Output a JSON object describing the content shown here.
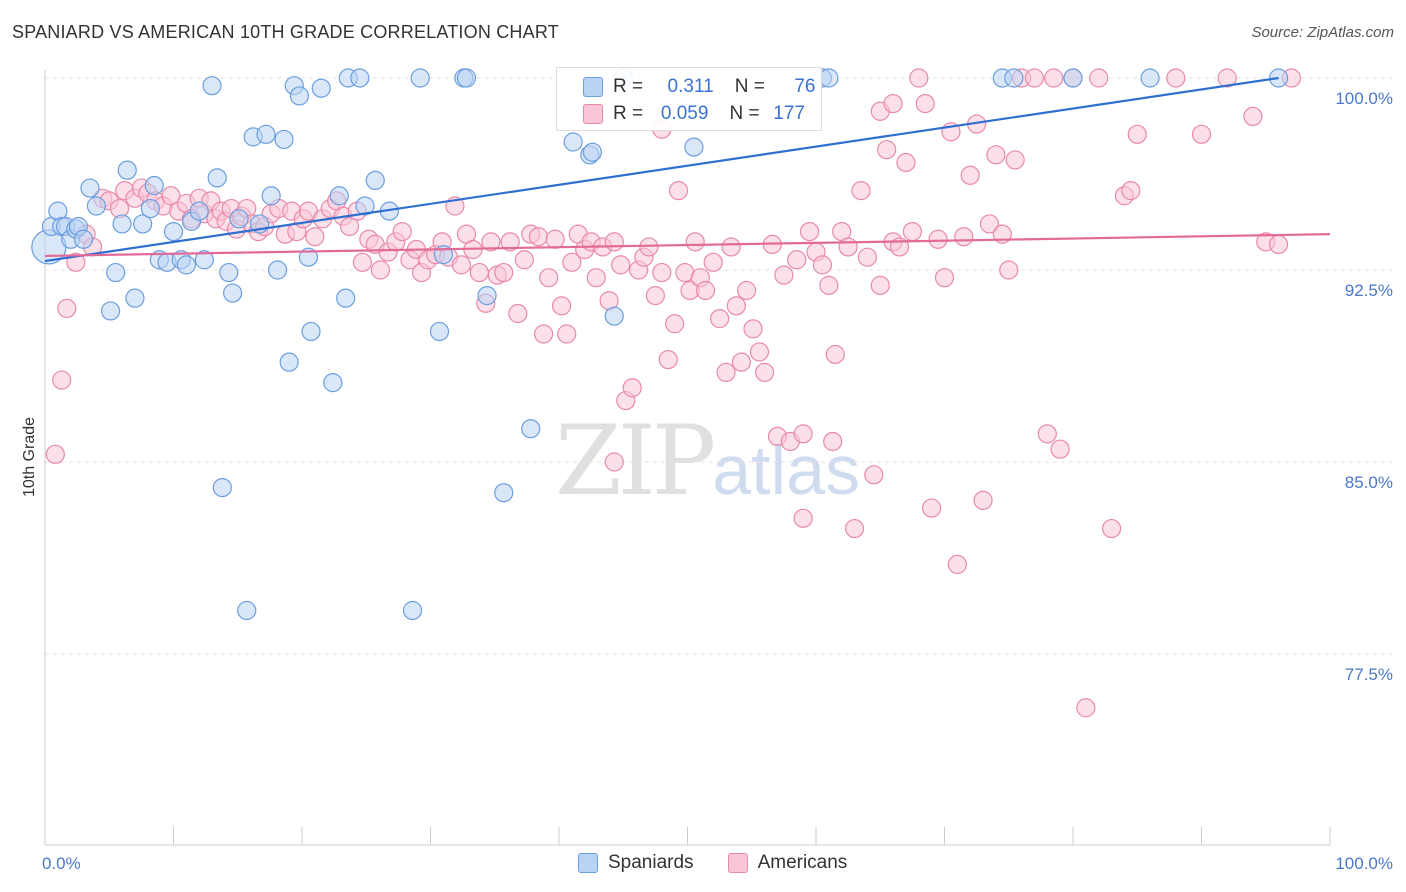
{
  "header": {
    "title": "SPANIARD VS AMERICAN 10TH GRADE CORRELATION CHART",
    "source": "Source: ZipAtlas.com"
  },
  "watermark": {
    "zip": "ZIP",
    "atlas": "atlas"
  },
  "legend": {
    "rows": [
      {
        "r_label": "R =",
        "r_value": "0.311",
        "n_label": "N =",
        "n_value": "76",
        "color": "#a9c8f0",
        "border": "#5b8fd6"
      },
      {
        "r_label": "R =",
        "r_value": "0.059",
        "n_label": "N =",
        "n_value": "177",
        "color": "#f7bcd0",
        "border": "#e07aa0"
      }
    ],
    "bottom": [
      {
        "label": "Spaniards",
        "color": "#a9c8f0",
        "border": "#5b8fd6"
      },
      {
        "label": "Americans",
        "color": "#f7bcd0",
        "border": "#e07aa0"
      }
    ]
  },
  "chart_data": {
    "type": "scatter",
    "title": "SPANIARD VS AMERICAN 10TH GRADE CORRELATION CHART",
    "xlabel": "",
    "ylabel": "10th Grade",
    "x_tick_labels": [
      "0.0%",
      "100.0%"
    ],
    "y_tick_labels": [
      "100.0%",
      "92.5%",
      "85.0%",
      "77.5%"
    ],
    "y_ticks": [
      100.0,
      92.5,
      85.0,
      77.5
    ],
    "xlim": [
      0,
      100
    ],
    "ylim": [
      70.5,
      100.6
    ],
    "grid": true,
    "series": [
      {
        "name": "Spaniards",
        "color": "#6b9ee0",
        "fill": "#b9d3f3",
        "trend": {
          "x": [
            0,
            96
          ],
          "y": [
            92.85,
            100.0
          ]
        },
        "points": [
          [
            0.3,
            93.4
          ],
          [
            0.5,
            94.2
          ],
          [
            1.0,
            94.8
          ],
          [
            1.3,
            94.2
          ],
          [
            1.6,
            94.2
          ],
          [
            2.0,
            93.7
          ],
          [
            2.4,
            94.1
          ],
          [
            2.6,
            94.2
          ],
          [
            3.5,
            95.7
          ],
          [
            4.0,
            95.0
          ],
          [
            5.1,
            90.9
          ],
          [
            5.5,
            92.4
          ],
          [
            6.0,
            94.3
          ],
          [
            6.4,
            96.4
          ],
          [
            7.0,
            91.4
          ],
          [
            7.6,
            94.3
          ],
          [
            8.2,
            94.9
          ],
          [
            8.5,
            95.8
          ],
          [
            8.9,
            92.9
          ],
          [
            9.5,
            92.8
          ],
          [
            10.0,
            94.0
          ],
          [
            10.6,
            92.9
          ],
          [
            11.0,
            92.7
          ],
          [
            11.4,
            94.4
          ],
          [
            12.0,
            94.8
          ],
          [
            12.4,
            92.9
          ],
          [
            13.0,
            99.7
          ],
          [
            13.4,
            96.1
          ],
          [
            13.8,
            84.0
          ],
          [
            14.3,
            92.4
          ],
          [
            14.6,
            91.6
          ],
          [
            15.1,
            94.5
          ],
          [
            15.7,
            79.2
          ],
          [
            16.2,
            97.7
          ],
          [
            16.7,
            94.3
          ],
          [
            17.2,
            97.8
          ],
          [
            17.6,
            95.4
          ],
          [
            18.1,
            92.5
          ],
          [
            18.6,
            97.6
          ],
          [
            19.0,
            88.9
          ],
          [
            19.4,
            99.7
          ],
          [
            19.8,
            99.3
          ],
          [
            20.5,
            93.0
          ],
          [
            20.7,
            90.1
          ],
          [
            21.5,
            99.6
          ],
          [
            22.4,
            88.1
          ],
          [
            22.9,
            95.4
          ],
          [
            23.4,
            91.4
          ],
          [
            23.6,
            100.0
          ],
          [
            24.5,
            100.0
          ],
          [
            24.9,
            95.0
          ],
          [
            25.7,
            96.0
          ],
          [
            26.8,
            94.8
          ],
          [
            28.6,
            79.2
          ],
          [
            29.2,
            100.0
          ],
          [
            30.7,
            90.1
          ],
          [
            31.0,
            93.1
          ],
          [
            32.6,
            100.0
          ],
          [
            32.8,
            100.0
          ],
          [
            34.4,
            91.5
          ],
          [
            35.7,
            83.8
          ],
          [
            37.8,
            86.3
          ],
          [
            41.1,
            97.5
          ],
          [
            42.4,
            97.0
          ],
          [
            42.6,
            97.1
          ],
          [
            44.3,
            90.7
          ],
          [
            45.0,
            100.0
          ],
          [
            50.5,
            97.3
          ],
          [
            60.5,
            100.0
          ],
          [
            61.0,
            100.0
          ],
          [
            74.5,
            100.0
          ],
          [
            75.4,
            100.0
          ],
          [
            80.0,
            100.0
          ],
          [
            86.0,
            100.0
          ],
          [
            96.0,
            100.0
          ],
          [
            3.0,
            93.7
          ]
        ]
      },
      {
        "name": "Americans",
        "color": "#e889ab",
        "fill": "#f9c6d7",
        "trend": {
          "x": [
            0,
            100
          ],
          "y": [
            93.05,
            93.9
          ]
        },
        "points": [
          [
            0.8,
            85.3
          ],
          [
            1.3,
            88.2
          ],
          [
            1.7,
            91.0
          ],
          [
            2.4,
            92.8
          ],
          [
            3.2,
            93.9
          ],
          [
            3.7,
            93.4
          ],
          [
            4.5,
            95.3
          ],
          [
            5.0,
            95.2
          ],
          [
            5.8,
            94.9
          ],
          [
            6.2,
            95.6
          ],
          [
            7.0,
            95.3
          ],
          [
            7.5,
            95.7
          ],
          [
            8.0,
            95.5
          ],
          [
            8.6,
            95.2
          ],
          [
            9.2,
            95.0
          ],
          [
            9.8,
            95.4
          ],
          [
            10.4,
            94.8
          ],
          [
            11.0,
            95.1
          ],
          [
            11.4,
            94.5
          ],
          [
            12.0,
            95.3
          ],
          [
            12.4,
            94.7
          ],
          [
            12.9,
            95.2
          ],
          [
            13.3,
            94.5
          ],
          [
            13.7,
            94.8
          ],
          [
            14.1,
            94.4
          ],
          [
            14.5,
            94.9
          ],
          [
            14.9,
            94.1
          ],
          [
            15.3,
            94.6
          ],
          [
            15.7,
            94.9
          ],
          [
            16.1,
            94.3
          ],
          [
            16.6,
            94.0
          ],
          [
            17.1,
            94.2
          ],
          [
            17.6,
            94.7
          ],
          [
            18.2,
            94.9
          ],
          [
            18.7,
            93.9
          ],
          [
            19.2,
            94.8
          ],
          [
            19.6,
            94.0
          ],
          [
            20.1,
            94.5
          ],
          [
            20.5,
            94.8
          ],
          [
            21.0,
            93.8
          ],
          [
            21.6,
            94.5
          ],
          [
            22.2,
            94.9
          ],
          [
            22.7,
            95.2
          ],
          [
            23.2,
            94.6
          ],
          [
            23.7,
            94.2
          ],
          [
            24.3,
            94.8
          ],
          [
            24.7,
            92.8
          ],
          [
            25.2,
            93.7
          ],
          [
            25.7,
            93.5
          ],
          [
            26.1,
            92.5
          ],
          [
            26.7,
            93.2
          ],
          [
            27.3,
            93.6
          ],
          [
            27.8,
            94.0
          ],
          [
            28.4,
            92.9
          ],
          [
            28.9,
            93.3
          ],
          [
            29.3,
            92.4
          ],
          [
            29.8,
            92.9
          ],
          [
            30.4,
            93.1
          ],
          [
            30.9,
            93.6
          ],
          [
            31.4,
            93.0
          ],
          [
            31.9,
            95.0
          ],
          [
            32.4,
            92.7
          ],
          [
            32.8,
            93.9
          ],
          [
            33.3,
            93.3
          ],
          [
            33.8,
            92.4
          ],
          [
            34.3,
            91.2
          ],
          [
            34.7,
            93.6
          ],
          [
            35.2,
            92.3
          ],
          [
            35.7,
            92.4
          ],
          [
            36.2,
            93.6
          ],
          [
            36.8,
            90.8
          ],
          [
            37.3,
            92.9
          ],
          [
            37.8,
            93.9
          ],
          [
            38.4,
            93.8
          ],
          [
            38.8,
            90.0
          ],
          [
            39.2,
            92.2
          ],
          [
            39.7,
            93.7
          ],
          [
            40.2,
            91.1
          ],
          [
            40.6,
            90.0
          ],
          [
            41.0,
            92.8
          ],
          [
            41.5,
            93.9
          ],
          [
            42.0,
            93.3
          ],
          [
            42.5,
            93.6
          ],
          [
            42.9,
            92.2
          ],
          [
            43.4,
            93.4
          ],
          [
            43.9,
            91.3
          ],
          [
            44.3,
            93.6
          ],
          [
            44.8,
            92.7
          ],
          [
            45.2,
            87.4
          ],
          [
            45.7,
            87.9
          ],
          [
            46.2,
            92.5
          ],
          [
            46.6,
            93.0
          ],
          [
            47.0,
            93.4
          ],
          [
            47.5,
            91.5
          ],
          [
            48.0,
            92.4
          ],
          [
            48.5,
            89.0
          ],
          [
            49.0,
            90.4
          ],
          [
            49.3,
            95.6
          ],
          [
            49.8,
            92.4
          ],
          [
            50.2,
            91.7
          ],
          [
            50.6,
            93.6
          ],
          [
            51.0,
            92.2
          ],
          [
            51.4,
            91.7
          ],
          [
            52.0,
            92.8
          ],
          [
            52.5,
            90.6
          ],
          [
            53.0,
            88.5
          ],
          [
            53.4,
            93.4
          ],
          [
            53.8,
            91.1
          ],
          [
            54.2,
            88.9
          ],
          [
            54.6,
            91.7
          ],
          [
            55.1,
            90.2
          ],
          [
            55.6,
            89.3
          ],
          [
            56.0,
            88.5
          ],
          [
            56.6,
            93.5
          ],
          [
            57.0,
            86.0
          ],
          [
            57.5,
            92.3
          ],
          [
            58.0,
            85.8
          ],
          [
            58.5,
            92.9
          ],
          [
            59.0,
            82.8
          ],
          [
            59.5,
            94.0
          ],
          [
            60.0,
            93.2
          ],
          [
            60.5,
            92.7
          ],
          [
            61.0,
            91.9
          ],
          [
            61.5,
            89.2
          ],
          [
            62.0,
            94.0
          ],
          [
            62.5,
            93.4
          ],
          [
            63.0,
            82.4
          ],
          [
            63.5,
            95.6
          ],
          [
            64.0,
            93.0
          ],
          [
            64.5,
            84.5
          ],
          [
            65.0,
            91.9
          ],
          [
            65.5,
            97.2
          ],
          [
            66.0,
            93.6
          ],
          [
            66.5,
            93.4
          ],
          [
            67.0,
            96.7
          ],
          [
            67.5,
            94.0
          ],
          [
            68.0,
            100.0
          ],
          [
            68.5,
            99.0
          ],
          [
            69.0,
            83.2
          ],
          [
            69.5,
            93.7
          ],
          [
            70.0,
            92.2
          ],
          [
            70.5,
            97.9
          ],
          [
            71.0,
            81.0
          ],
          [
            71.5,
            93.8
          ],
          [
            72.0,
            96.2
          ],
          [
            72.5,
            98.2
          ],
          [
            73.0,
            83.5
          ],
          [
            73.5,
            94.3
          ],
          [
            74.0,
            97.0
          ],
          [
            74.5,
            93.9
          ],
          [
            75.0,
            92.5
          ],
          [
            75.5,
            96.8
          ],
          [
            76.0,
            100.0
          ],
          [
            77.0,
            100.0
          ],
          [
            78.0,
            86.1
          ],
          [
            78.5,
            100.0
          ],
          [
            79.0,
            85.5
          ],
          [
            80.0,
            100.0
          ],
          [
            81.0,
            75.4
          ],
          [
            82.0,
            100.0
          ],
          [
            83.0,
            82.4
          ],
          [
            84.0,
            95.4
          ],
          [
            84.5,
            95.6
          ],
          [
            85.0,
            97.8
          ],
          [
            88.0,
            100.0
          ],
          [
            90.0,
            97.8
          ],
          [
            92.0,
            100.0
          ],
          [
            94.0,
            98.5
          ],
          [
            95.0,
            93.6
          ],
          [
            96.0,
            93.5
          ],
          [
            97.0,
            100.0
          ],
          [
            59.0,
            86.1
          ],
          [
            61.3,
            85.8
          ],
          [
            65.0,
            98.7
          ],
          [
            48.0,
            98.0
          ],
          [
            44.3,
            85.0
          ],
          [
            66.0,
            99.0
          ]
        ]
      }
    ]
  }
}
